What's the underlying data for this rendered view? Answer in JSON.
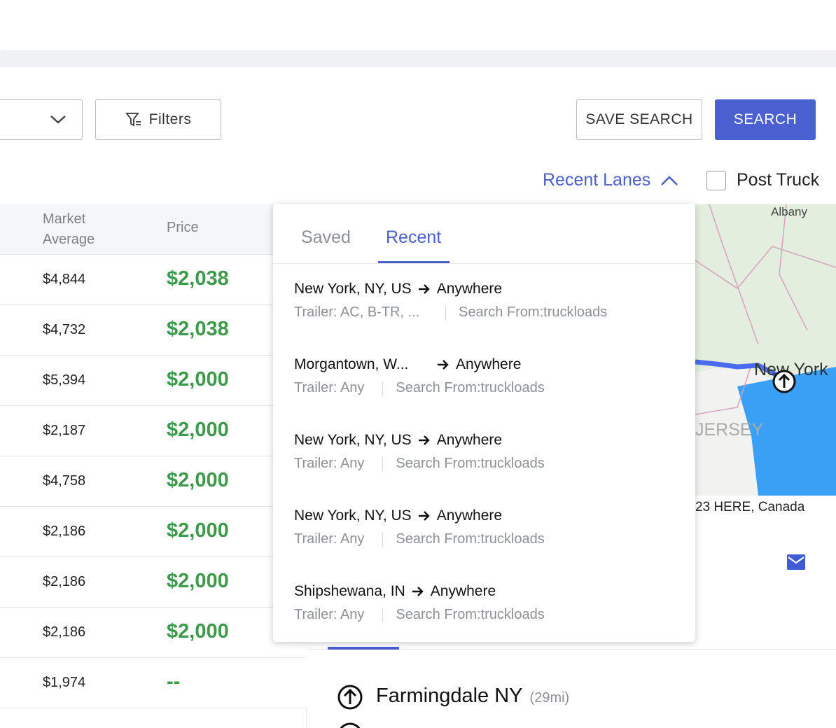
{
  "toolbar": {
    "filters": "Filters",
    "save_search": "SAVE SEARCH",
    "search": "SEARCH",
    "recent_lanes": "Recent Lanes",
    "post_truck": "Post Truck"
  },
  "table": {
    "columns": [
      "Market Average",
      "Price"
    ],
    "rows": [
      [
        "$4,844",
        "$2,038"
      ],
      [
        "$4,732",
        "$2,038"
      ],
      [
        "$5,394",
        "$2,000"
      ],
      [
        "$2,187",
        "$2,000"
      ],
      [
        "$4,758",
        "$2,000"
      ],
      [
        "$2,186",
        "$2,000"
      ],
      [
        "$2,186",
        "$2,000"
      ],
      [
        "$2,186",
        "$2,000"
      ],
      [
        "$1,974",
        "--"
      ]
    ]
  },
  "map": {
    "labels": [
      "Albany",
      "New York",
      "JERSEY"
    ],
    "attribution": "23 HERE, Canada"
  },
  "popup": {
    "tabs": [
      "Saved",
      "Recent"
    ],
    "items": [
      {
        "origin": "New York, NY, US",
        "destination": "Anywhere",
        "trailer": "Trailer: AC, B-TR, ...",
        "search_from": "Search From:truckloads"
      },
      {
        "origin": "Morgantown, W...",
        "destination": "Anywhere",
        "trailer": "Trailer: Any",
        "search_from": "Search From:truckloads"
      },
      {
        "origin": "New York, NY, US",
        "destination": "Anywhere",
        "trailer": "Trailer: Any",
        "search_from": "Search From:truckloads"
      },
      {
        "origin": "New York, NY, US",
        "destination": "Anywhere",
        "trailer": "Trailer: Any",
        "search_from": "Search From:truckloads"
      },
      {
        "origin": "Shipshewana, IN",
        "destination": "Anywhere",
        "trailer": "Trailer: Any",
        "search_from": "Search From:truckloads"
      }
    ]
  },
  "stops": [
    {
      "name": "Farmingdale NY",
      "distance": "(29mi)"
    }
  ]
}
